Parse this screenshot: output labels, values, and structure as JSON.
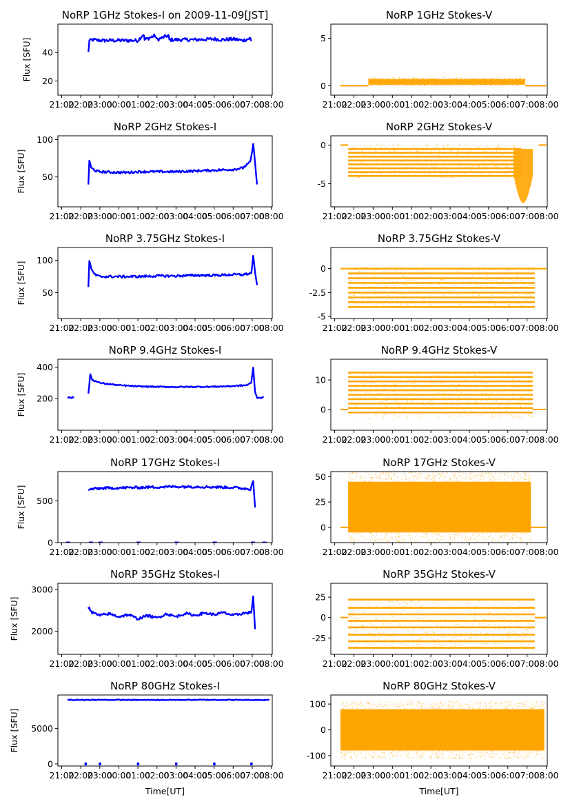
{
  "figure": {
    "xlabel": "Time[UT]",
    "ylabel": "Flux [SFU]"
  },
  "colors": {
    "stokes_i": "#0000ff",
    "stokes_v": "#ffa500"
  },
  "chart_data": {
    "type": "scatter",
    "x_range_hours": [
      20.8,
      32.05
    ],
    "x_tick_labels": [
      "21:00",
      "22:00",
      "23:00",
      "00:00",
      "01:00",
      "02:00",
      "03:00",
      "04:00",
      "05:00",
      "06:00",
      "07:00",
      "08:00"
    ],
    "x_tick_hours": [
      21,
      22,
      23,
      24,
      25,
      26,
      27,
      28,
      29,
      30,
      31,
      32
    ],
    "rows": [
      {
        "stokes_i": {
          "title": "NoRP 1GHz Stokes-I on 2009-11-09[JST]",
          "ylim": [
            10,
            60
          ],
          "yticks": [
            20,
            40
          ],
          "segments": [
            {
              "x": [
                22.4,
                22.45,
                22.6,
                23.0,
                24.0,
                25.0,
                25.3,
                25.35,
                25.9,
                26.0,
                26.6,
                26.65,
                27.0,
                28.0,
                29.0,
                29.5,
                30.0,
                30.5,
                30.9,
                30.95
              ],
              "y": [
                40,
                48,
                49,
                48.5,
                48.5,
                48.5,
                53,
                49,
                52,
                49,
                52,
                49,
                49,
                49,
                49.5,
                49,
                49.5,
                48.5,
                50,
                48
              ]
            }
          ],
          "spread": 1.2
        },
        "stokes_v": {
          "title": "NoRP 1GHz Stokes-V",
          "ylim": [
            -1,
            6.5
          ],
          "yticks": [
            0,
            5
          ],
          "flat": [
            {
              "x": [
                21.3,
                22.75
              ],
              "y": 0
            },
            {
              "x": [
                30.9,
                32.0
              ],
              "y": 0
            }
          ],
          "band": {
            "x": [
              22.75,
              30.9
            ],
            "lo": 0.0,
            "hi": 0.9,
            "centers": [
              0.2,
              0.4,
              0.6
            ]
          }
        }
      },
      {
        "stokes_i": {
          "title": "NoRP 2GHz Stokes-I",
          "ylim": [
            10,
            105
          ],
          "yticks": [
            50,
            100
          ],
          "segments": [
            {
              "x": [
                22.4,
                22.45,
                22.55,
                22.8,
                23.0,
                24.0,
                24.5,
                25.0,
                26.0,
                27.0,
                28.0,
                29.0,
                30.0,
                30.5,
                30.9,
                31.05,
                31.15,
                31.25
              ],
              "y": [
                40,
                72,
                62,
                58,
                57,
                56,
                56,
                57,
                57,
                57,
                58,
                59,
                60,
                62,
                70,
                93,
                70,
                40
              ]
            }
          ],
          "spread": 1.5
        },
        "stokes_v": {
          "title": "NoRP 2GHz Stokes-V",
          "ylim": [
            -8,
            1.2
          ],
          "yticks": [
            -5,
            0
          ],
          "flat": [
            {
              "x": [
                21.3,
                21.7
              ],
              "y": 0
            },
            {
              "x": [
                31.6,
                32.0
              ],
              "y": 0
            }
          ],
          "band": {
            "x": [
              21.7,
              30.7
            ],
            "lo": -4.2,
            "hi": 0.2,
            "centers": [
              -4,
              -3.5,
              -3,
              -2.5,
              -2,
              -1.5,
              -1,
              -0.5
            ]
          },
          "dip": {
            "x": [
              30.3,
              31.3
            ],
            "min": -7.5
          }
        }
      },
      {
        "stokes_i": {
          "title": "NoRP 3.75GHz Stokes-I",
          "ylim": [
            10,
            120
          ],
          "yticks": [
            50,
            100
          ],
          "segments": [
            {
              "x": [
                22.4,
                22.45,
                22.6,
                22.8,
                23.0,
                24.0,
                25.0,
                26.0,
                27.0,
                28.0,
                29.0,
                30.0,
                30.5,
                30.95,
                31.05,
                31.15,
                31.25
              ],
              "y": [
                60,
                99,
                83,
                77,
                75,
                75,
                75,
                76,
                76,
                77,
                77,
                78,
                78,
                80,
                107,
                80,
                62
              ]
            }
          ],
          "spread": 1.8
        },
        "stokes_v": {
          "title": "NoRP 3.75GHz Stokes-V",
          "ylim": [
            -5.2,
            2.2
          ],
          "yticks": [
            -5.0,
            -2.5,
            0.0
          ],
          "flat": [
            {
              "x": [
                21.3,
                21.7
              ],
              "y": 0
            },
            {
              "x": [
                31.4,
                32.0
              ],
              "y": 0
            }
          ],
          "band": {
            "x": [
              21.7,
              31.4
            ],
            "lo": -4.0,
            "hi": 0.3,
            "centers": [
              -4,
              -3.5,
              -3,
              -2.5,
              -2,
              -1.5,
              -1,
              -0.5,
              0
            ]
          }
        }
      },
      {
        "stokes_i": {
          "title": "NoRP 9.4GHz Stokes-I",
          "ylim": [
            0,
            450
          ],
          "yticks": [
            200,
            400
          ],
          "segments": [
            {
              "x": [
                21.3,
                21.65
              ],
              "y": [
                207,
                207
              ]
            },
            {
              "x": [
                22.4,
                22.5,
                22.6,
                23.0,
                24.0,
                25.0,
                26.0,
                27.0,
                28.0,
                29.0,
                30.0,
                30.7,
                30.95,
                31.05,
                31.15,
                31.25,
                31.6
              ],
              "y": [
                230,
                355,
                320,
                300,
                285,
                278,
                275,
                274,
                275,
                276,
                280,
                285,
                300,
                400,
                240,
                207,
                207
              ]
            }
          ],
          "spread": 4
        },
        "stokes_v": {
          "title": "NoRP 9.4GHz Stokes-V",
          "ylim": [
            -7,
            17
          ],
          "yticks": [
            0,
            10
          ],
          "flat": [
            {
              "x": [
                21.3,
                21.7
              ],
              "y": 0
            },
            {
              "x": [
                31.3,
                32.0
              ],
              "y": 0
            }
          ],
          "band": {
            "x": [
              21.7,
              31.3
            ],
            "lo": -3,
            "hi": 13,
            "centers": [
              12.5,
              11,
              9.5,
              8,
              6.5,
              5,
              3.5,
              2,
              0.5,
              -1
            ]
          }
        }
      },
      {
        "stokes_i": {
          "title": "NoRP 17GHz Stokes-I",
          "ylim": [
            0,
            850
          ],
          "yticks": [
            0,
            500
          ],
          "segments": [
            {
              "x": [
                22.4,
                22.5,
                23.0,
                24.0,
                25.0,
                26.0,
                27.0,
                28.0,
                29.0,
                30.0,
                30.9,
                31.05,
                31.15
              ],
              "y": [
                620,
                640,
                650,
                655,
                660,
                665,
                670,
                670,
                665,
                660,
                640,
                750,
                420
              ]
            }
          ],
          "spread": 15
        },
        "stokes_v": {
          "title": "NoRP 17GHz Stokes-V",
          "ylim": [
            -15,
            55
          ],
          "yticks": [
            0,
            25,
            50
          ],
          "flat": [
            {
              "x": [
                21.3,
                21.7
              ],
              "y": 0
            },
            {
              "x": [
                31.2,
                32.0
              ],
              "y": 0
            }
          ],
          "band": {
            "x": [
              21.7,
              31.2
            ],
            "lo": -5,
            "hi": 45,
            "centers": []
          }
        }
      },
      {
        "stokes_i": {
          "title": "NoRP 35GHz Stokes-I",
          "ylim": [
            1450,
            3150
          ],
          "yticks": [
            2000,
            3000
          ],
          "segments": [
            {
              "x": [
                22.4,
                22.45,
                22.6,
                23.0,
                23.5,
                24.0,
                24.5,
                25.0,
                25.5,
                26.0,
                26.5,
                27.0,
                27.5,
                28.0,
                28.5,
                29.0,
                29.5,
                30.0,
                30.5,
                30.95,
                31.05,
                31.15
              ],
              "y": [
                2600,
                2550,
                2450,
                2380,
                2420,
                2350,
                2400,
                2300,
                2380,
                2320,
                2420,
                2350,
                2430,
                2380,
                2440,
                2400,
                2450,
                2380,
                2430,
                2450,
                2850,
                2050
              ]
            }
          ],
          "spread": 30
        },
        "stokes_v": {
          "title": "NoRP 35GHz Stokes-V",
          "ylim": [
            -45,
            42
          ],
          "yticks": [
            -25,
            0,
            25
          ],
          "flat": [
            {
              "x": [
                21.3,
                21.7
              ],
              "y": 0
            },
            {
              "x": [
                31.4,
                32.0
              ],
              "y": 0
            }
          ],
          "band": {
            "x": [
              21.7,
              31.4
            ],
            "lo": -38,
            "hi": 22,
            "centers": [
              22,
              12,
              4,
              -4,
              -12,
              -21,
              -29,
              -37
            ]
          }
        }
      },
      {
        "stokes_i": {
          "title": "NoRP 80GHz Stokes-I",
          "ylim": [
            -300,
            9700
          ],
          "yticks": [
            0,
            5000
          ],
          "segments": [
            {
              "x": [
                21.3,
                23.0,
                25.0,
                27.0,
                29.0,
                31.0,
                31.9
              ],
              "y": [
                9000,
                9020,
                9000,
                9010,
                9020,
                9000,
                9000
              ]
            }
          ],
          "spread": 60,
          "ticks_at_zero": [
            22.25,
            23.0,
            25.0,
            27.0,
            29.0,
            30.95
          ]
        },
        "stokes_v": {
          "title": "NoRP 80GHz Stokes-V",
          "ylim": [
            -140,
            135
          ],
          "yticks": [
            -100,
            0,
            100
          ],
          "flat": [],
          "band": {
            "x": [
              21.3,
              31.9
            ],
            "lo": -80,
            "hi": 80,
            "centers": []
          }
        }
      }
    ]
  }
}
